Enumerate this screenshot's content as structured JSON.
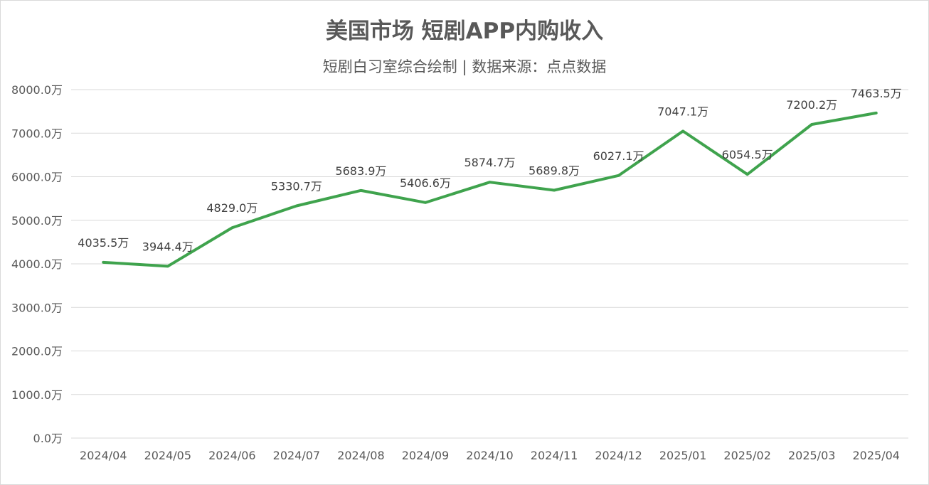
{
  "chart_data": {
    "type": "line",
    "title": "美国市场 短剧APP内购收入",
    "subtitle": "短剧白习室综合绘制 | 数据来源：点点数据",
    "xlabel": "",
    "ylabel": "",
    "unit": "万",
    "ylim": [
      0,
      8000
    ],
    "yticks": [
      0,
      1000,
      2000,
      3000,
      4000,
      5000,
      6000,
      7000,
      8000
    ],
    "ytick_labels": [
      "0.0万",
      "1000.0万",
      "2000.0万",
      "3000.0万",
      "4000.0万",
      "5000.0万",
      "6000.0万",
      "7000.0万",
      "8000.0万"
    ],
    "grid": true,
    "categories": [
      "2024/04",
      "2024/05",
      "2024/06",
      "2024/07",
      "2024/08",
      "2024/09",
      "2024/10",
      "2024/11",
      "2024/12",
      "2025/01",
      "2025/02",
      "2025/03",
      "2025/04"
    ],
    "series": [
      {
        "name": "内购收入",
        "color": "#3fa34d",
        "values": [
          4035.5,
          3944.4,
          4829.0,
          5330.7,
          5683.9,
          5406.6,
          5874.7,
          5689.8,
          6027.1,
          7047.1,
          6054.5,
          7200.2,
          7463.5
        ],
        "labels": [
          "4035.5万",
          "3944.4万",
          "4829.0万",
          "5330.7万",
          "5683.9万",
          "5406.6万",
          "5874.7万",
          "5689.8万",
          "6027.1万",
          "7047.1万",
          "6054.5万",
          "7200.2万",
          "7463.5万"
        ]
      }
    ]
  }
}
